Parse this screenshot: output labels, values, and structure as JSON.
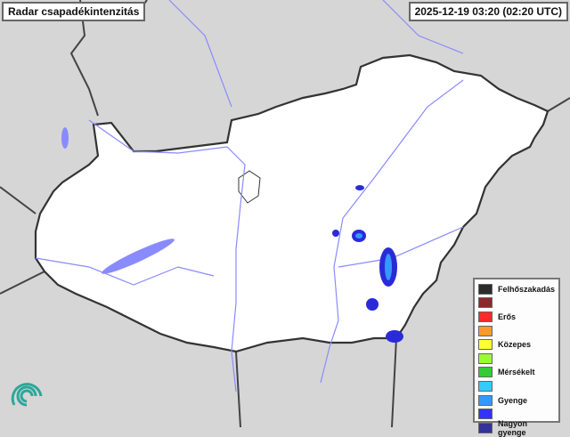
{
  "header": {
    "title": "Radar csapadékintenzitás",
    "timestamp": "2025-12-19 03:20 (02:20 UTC)"
  },
  "legend": {
    "items": [
      {
        "label": "Felhőszakadás",
        "color": "#2b2b2b"
      },
      {
        "label": "",
        "color": "#8b2a2a"
      },
      {
        "label": "Erős",
        "color": "#ff2a2a"
      },
      {
        "label": "",
        "color": "#ff9a2a"
      },
      {
        "label": "Közepes",
        "color": "#ffff33"
      },
      {
        "label": "",
        "color": "#99ff33"
      },
      {
        "label": "Mérsékelt",
        "color": "#33cc33"
      },
      {
        "label": "",
        "color": "#33ccff"
      },
      {
        "label": "Gyenge",
        "color": "#3399ff"
      },
      {
        "label": "",
        "color": "#3333ff"
      },
      {
        "label": "Nagyon gyenge",
        "color": "#333399"
      }
    ]
  },
  "map": {
    "land_color": "#ffffff",
    "background_color": "#d6d6d6",
    "border_color": "#333333",
    "water_color": "#8a8aff",
    "logo": "met-service-swirl-logo"
  }
}
